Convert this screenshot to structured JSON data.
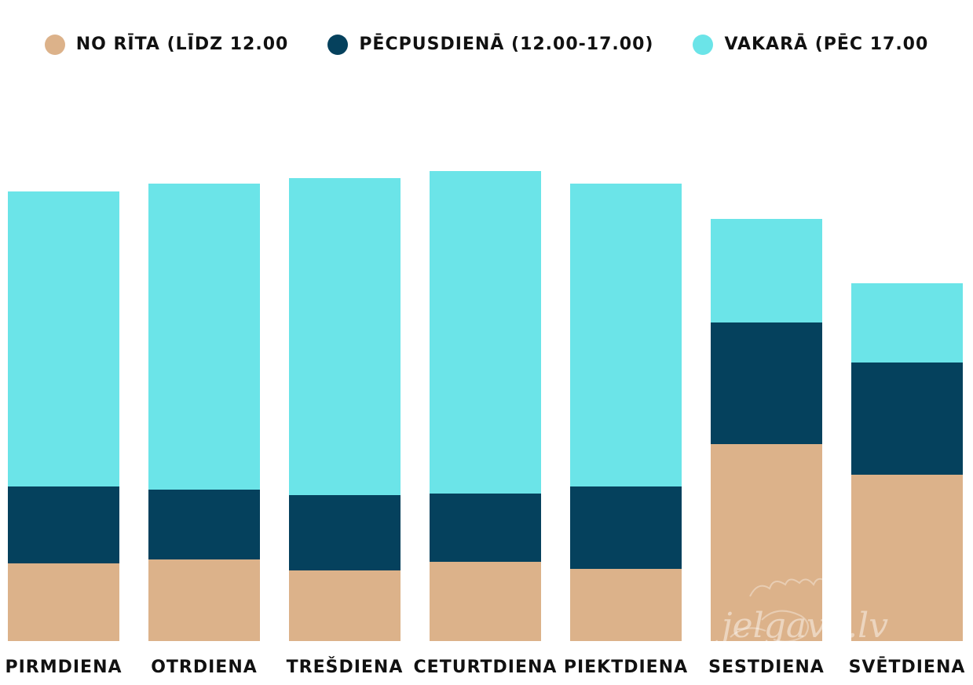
{
  "chart_data": {
    "type": "bar",
    "stacked": true,
    "categories": [
      "PIRMDIENA",
      "OTRDIENA",
      "TREŠDIENA",
      "CETURTDIENA",
      "PIEKTDIENA",
      "SESTDIENA",
      "SVĒTDIENA"
    ],
    "series": [
      {
        "name": "NO RĪTA (LĪDZ 12.00",
        "color": "#DCB28A",
        "values": [
          99,
          104,
          90,
          101,
          92,
          251,
          212
        ]
      },
      {
        "name": "PĒCPUSDIENĀ (12.00-17.00)",
        "color": "#05415D",
        "values": [
          98,
          89,
          96,
          87,
          105,
          155,
          143
        ]
      },
      {
        "name": "VAKARĀ (PĒC 17.00",
        "color": "#6BE4E8",
        "values": [
          376,
          390,
          404,
          411,
          386,
          132,
          101
        ]
      }
    ],
    "legend_position": "top",
    "grid": false,
    "ylim": [
      0,
      600
    ],
    "watermark_text": "jelgava.lv"
  }
}
